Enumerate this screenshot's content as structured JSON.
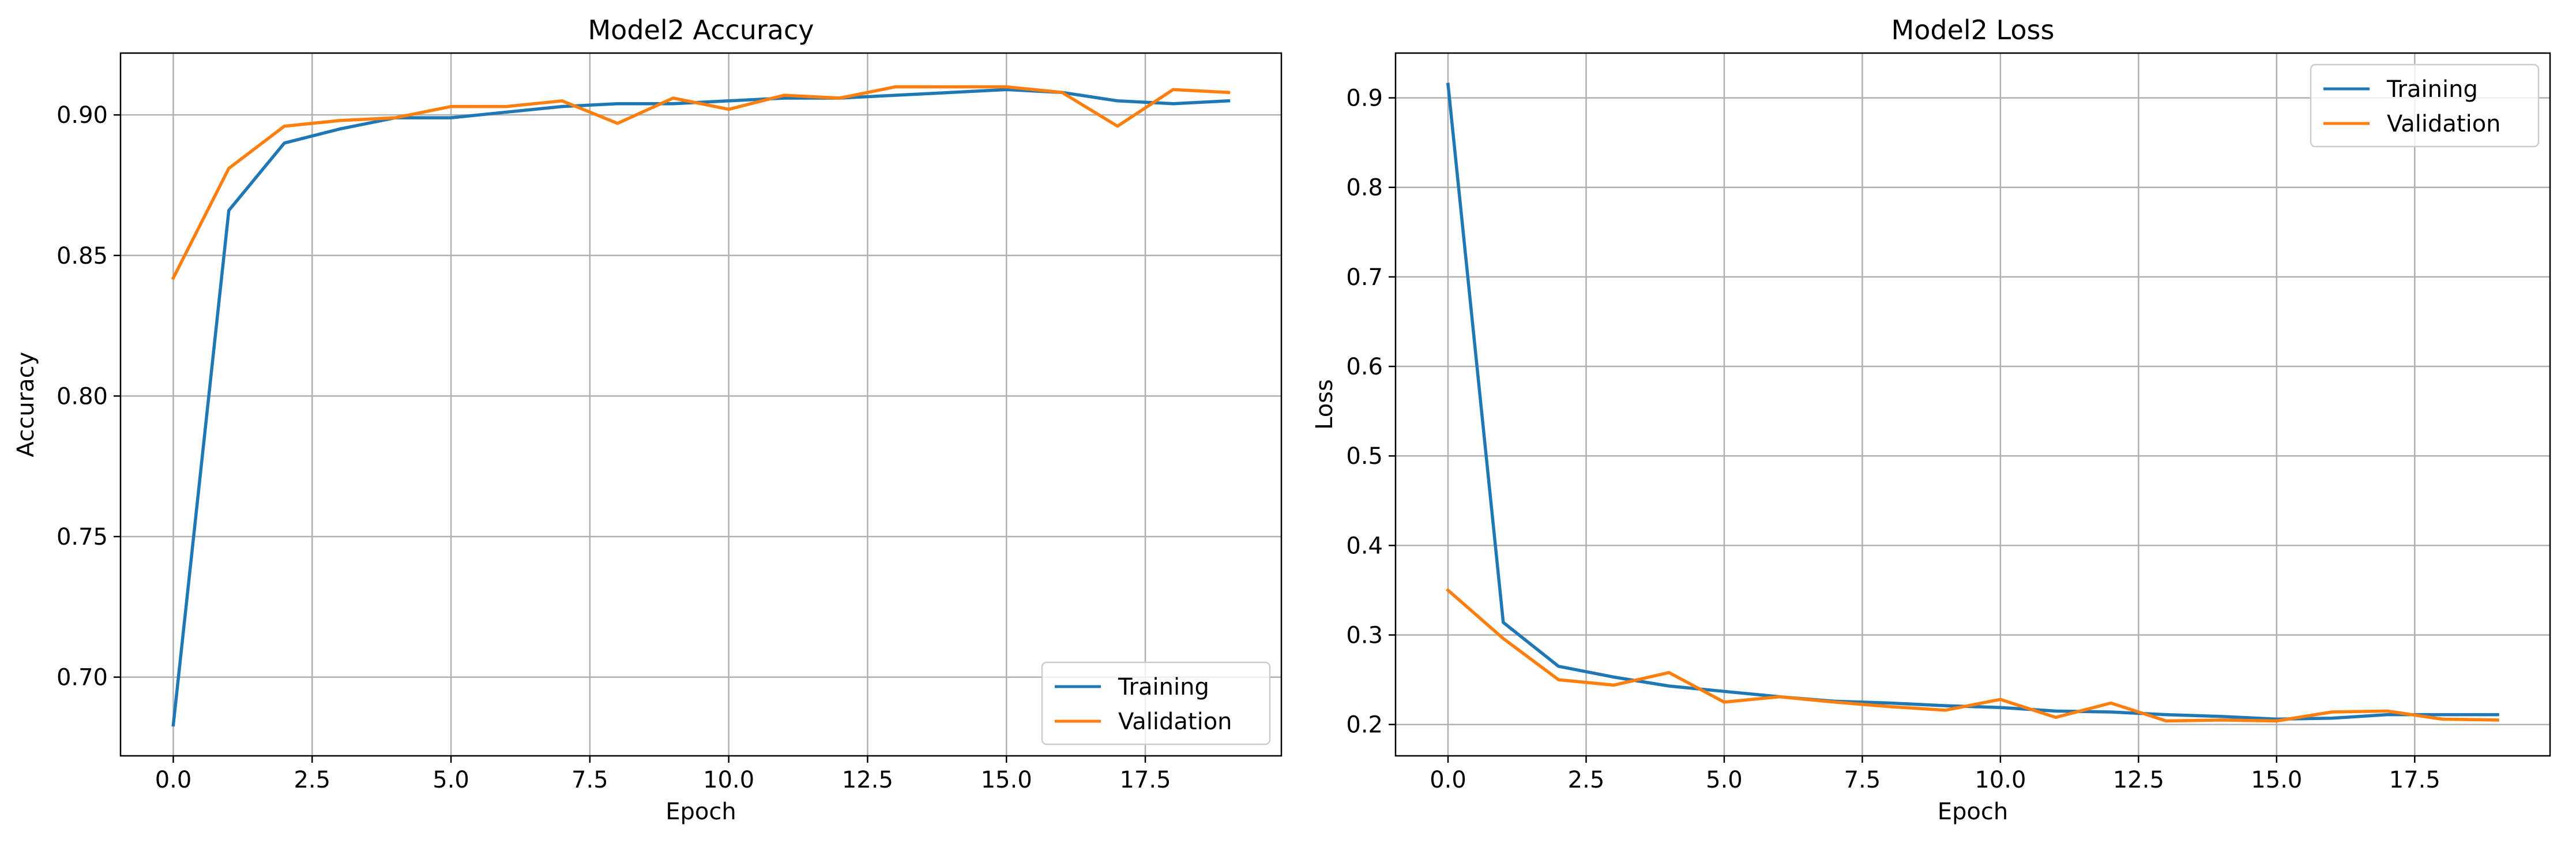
{
  "colors": {
    "training": "#1f77b4",
    "validation": "#ff7f0e",
    "grid": "#b0b0b0",
    "axis": "#000000"
  },
  "chart_data": [
    {
      "type": "line",
      "title": "Model2 Accuracy",
      "xlabel": "Epoch",
      "ylabel": "Accuracy",
      "xlim": [
        -0.95,
        19.95
      ],
      "ylim": [
        0.672,
        0.922
      ],
      "xticks": [
        0.0,
        2.5,
        5.0,
        7.5,
        10.0,
        12.5,
        15.0,
        17.5
      ],
      "xtick_labels": [
        "0.0",
        "2.5",
        "5.0",
        "7.5",
        "10.0",
        "12.5",
        "15.0",
        "17.5"
      ],
      "yticks": [
        0.7,
        0.75,
        0.8,
        0.85,
        0.9
      ],
      "ytick_labels": [
        "0.70",
        "0.75",
        "0.80",
        "0.85",
        "0.90"
      ],
      "grid": true,
      "legend_position": "lower-right",
      "x": [
        0,
        1,
        2,
        3,
        4,
        5,
        6,
        7,
        8,
        9,
        10,
        11,
        12,
        13,
        14,
        15,
        16,
        17,
        18,
        19
      ],
      "series": [
        {
          "name": "Training",
          "color": "#1f77b4",
          "values": [
            0.683,
            0.866,
            0.89,
            0.895,
            0.899,
            0.899,
            0.901,
            0.903,
            0.904,
            0.904,
            0.905,
            0.906,
            0.906,
            0.907,
            0.908,
            0.909,
            0.908,
            0.905,
            0.904,
            0.905
          ]
        },
        {
          "name": "Validation",
          "color": "#ff7f0e",
          "values": [
            0.842,
            0.881,
            0.896,
            0.898,
            0.899,
            0.903,
            0.903,
            0.905,
            0.897,
            0.906,
            0.902,
            0.907,
            0.906,
            0.91,
            0.91,
            0.91,
            0.908,
            0.896,
            0.909,
            0.908
          ]
        }
      ]
    },
    {
      "type": "line",
      "title": "Model2 Loss",
      "xlabel": "Epoch",
      "ylabel": "Loss",
      "xlim": [
        -0.95,
        19.95
      ],
      "ylim": [
        0.165,
        0.95
      ],
      "xticks": [
        0.0,
        2.5,
        5.0,
        7.5,
        10.0,
        12.5,
        15.0,
        17.5
      ],
      "xtick_labels": [
        "0.0",
        "2.5",
        "5.0",
        "7.5",
        "10.0",
        "12.5",
        "15.0",
        "17.5"
      ],
      "yticks": [
        0.2,
        0.3,
        0.4,
        0.5,
        0.6,
        0.7,
        0.8,
        0.9
      ],
      "ytick_labels": [
        "0.2",
        "0.3",
        "0.4",
        "0.5",
        "0.6",
        "0.7",
        "0.8",
        "0.9"
      ],
      "grid": true,
      "legend_position": "upper-right",
      "x": [
        0,
        1,
        2,
        3,
        4,
        5,
        6,
        7,
        8,
        9,
        10,
        11,
        12,
        13,
        14,
        15,
        16,
        17,
        18,
        19
      ],
      "series": [
        {
          "name": "Training",
          "color": "#1f77b4",
          "values": [
            0.915,
            0.314,
            0.265,
            0.253,
            0.243,
            0.237,
            0.231,
            0.226,
            0.224,
            0.221,
            0.219,
            0.215,
            0.214,
            0.211,
            0.209,
            0.206,
            0.207,
            0.211,
            0.211,
            0.211
          ]
        },
        {
          "name": "Validation",
          "color": "#ff7f0e",
          "values": [
            0.35,
            0.296,
            0.25,
            0.244,
            0.258,
            0.225,
            0.231,
            0.225,
            0.22,
            0.216,
            0.228,
            0.208,
            0.224,
            0.204,
            0.205,
            0.204,
            0.214,
            0.215,
            0.206,
            0.205
          ]
        }
      ]
    }
  ]
}
